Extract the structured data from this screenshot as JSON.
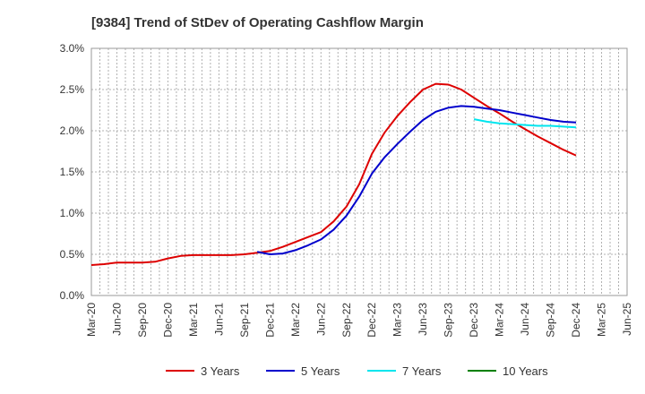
{
  "chart_data": {
    "type": "line",
    "title": "[9384]  Trend of StDev of Operating Cashflow Margin",
    "xlabel": "",
    "ylabel": "",
    "ylim": [
      0,
      3.0
    ],
    "y_ticks": [
      0,
      0.5,
      1.0,
      1.5,
      2.0,
      2.5,
      3.0
    ],
    "y_tick_labels": [
      "0.0%",
      "0.5%",
      "1.0%",
      "1.5%",
      "2.0%",
      "2.5%",
      "3.0%"
    ],
    "x_tick_labels": [
      "Mar-20",
      "Jun-20",
      "Sep-20",
      "Dec-20",
      "Mar-21",
      "Jun-21",
      "Sep-21",
      "Dec-21",
      "Mar-22",
      "Jun-22",
      "Sep-22",
      "Dec-22",
      "Mar-23",
      "Jun-23",
      "Sep-23",
      "Dec-23",
      "Mar-24",
      "Jun-24",
      "Sep-24",
      "Dec-24",
      "Mar-25",
      "Jun-25"
    ],
    "grid": true,
    "legend_position": "bottom",
    "series": [
      {
        "name": "3 Years",
        "color": "#dd0000",
        "points": [
          [
            0,
            0.37
          ],
          [
            0.5,
            0.38
          ],
          [
            1,
            0.4
          ],
          [
            1.5,
            0.4
          ],
          [
            2,
            0.4
          ],
          [
            2.5,
            0.41
          ],
          [
            3,
            0.45
          ],
          [
            3.5,
            0.48
          ],
          [
            4,
            0.49
          ],
          [
            4.5,
            0.49
          ],
          [
            5,
            0.49
          ],
          [
            5.5,
            0.49
          ],
          [
            6,
            0.5
          ],
          [
            6.5,
            0.52
          ],
          [
            7,
            0.54
          ],
          [
            7.5,
            0.59
          ],
          [
            8,
            0.65
          ],
          [
            8.5,
            0.71
          ],
          [
            9,
            0.77
          ],
          [
            9.5,
            0.9
          ],
          [
            10,
            1.08
          ],
          [
            10.5,
            1.35
          ],
          [
            11,
            1.72
          ],
          [
            11.5,
            1.98
          ],
          [
            12,
            2.18
          ],
          [
            12.5,
            2.35
          ],
          [
            13,
            2.5
          ],
          [
            13.5,
            2.57
          ],
          [
            14,
            2.56
          ],
          [
            14.5,
            2.5
          ],
          [
            15,
            2.4
          ],
          [
            15.5,
            2.3
          ],
          [
            16,
            2.21
          ],
          [
            16.5,
            2.11
          ],
          [
            17,
            2.02
          ],
          [
            17.5,
            1.93
          ],
          [
            18,
            1.85
          ],
          [
            18.5,
            1.77
          ],
          [
            19,
            1.7
          ]
        ]
      },
      {
        "name": "5 Years",
        "color": "#0000cc",
        "points": [
          [
            6.5,
            0.53
          ],
          [
            7,
            0.5
          ],
          [
            7.5,
            0.51
          ],
          [
            8,
            0.55
          ],
          [
            8.5,
            0.61
          ],
          [
            9,
            0.68
          ],
          [
            9.5,
            0.8
          ],
          [
            10,
            0.97
          ],
          [
            10.5,
            1.2
          ],
          [
            11,
            1.48
          ],
          [
            11.5,
            1.68
          ],
          [
            12,
            1.84
          ],
          [
            12.5,
            1.99
          ],
          [
            13,
            2.13
          ],
          [
            13.5,
            2.23
          ],
          [
            14,
            2.28
          ],
          [
            14.5,
            2.3
          ],
          [
            15,
            2.29
          ],
          [
            15.5,
            2.27
          ],
          [
            16,
            2.25
          ],
          [
            16.5,
            2.22
          ],
          [
            17,
            2.19
          ],
          [
            17.5,
            2.16
          ],
          [
            18,
            2.13
          ],
          [
            18.5,
            2.11
          ],
          [
            19,
            2.1
          ]
        ]
      },
      {
        "name": "7 Years",
        "color": "#00e5ee",
        "points": [
          [
            15,
            2.14
          ],
          [
            15.5,
            2.11
          ],
          [
            16,
            2.09
          ],
          [
            16.5,
            2.08
          ],
          [
            17,
            2.07
          ],
          [
            17.5,
            2.06
          ],
          [
            18,
            2.06
          ],
          [
            18.5,
            2.05
          ],
          [
            19,
            2.04
          ]
        ]
      },
      {
        "name": "10 Years",
        "color": "#008000",
        "points": []
      }
    ]
  }
}
